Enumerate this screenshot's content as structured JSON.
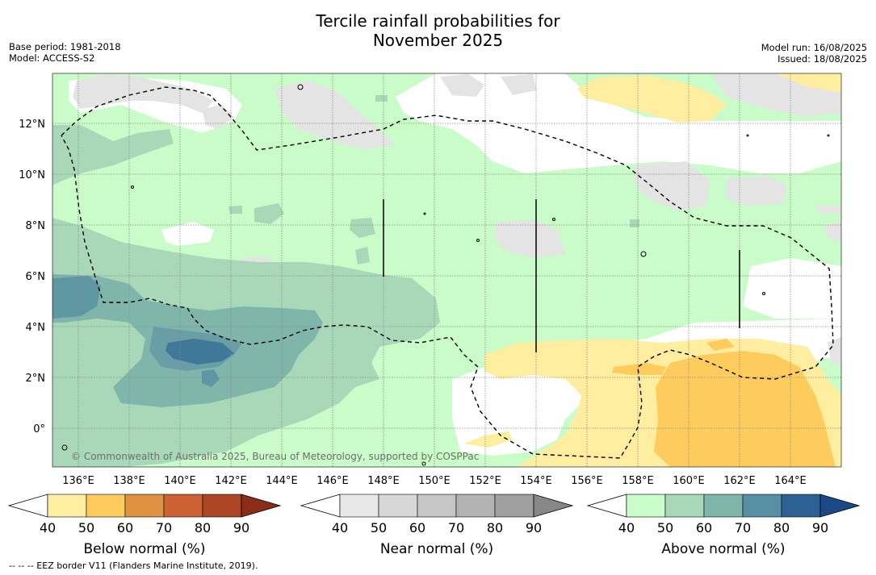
{
  "title_line1": "Tercile rainfall probabilities for",
  "title_line2": "November 2025",
  "meta_left": {
    "base_period": "Base period: 1981-2018",
    "model": "Model: ACCESS-S2"
  },
  "meta_right": {
    "model_run": "Model run: 16/08/2025",
    "issued": "Issued: 18/08/2025"
  },
  "copyright": "© Commonwealth of Australia 2025, Bureau of Meteorology, supported by COSPPac",
  "footnote": "--  --  -- EEZ border V11 (Flanders Marine Institute, 2019).",
  "x_ticks": [
    "136°E",
    "138°E",
    "140°E",
    "142°E",
    "144°E",
    "146°E",
    "148°E",
    "150°E",
    "152°E",
    "154°E",
    "156°E",
    "158°E",
    "160°E",
    "162°E",
    "164°E"
  ],
  "y_ticks": [
    "12°N",
    "10°N",
    "8°N",
    "6°N",
    "4°N",
    "2°N",
    "0°"
  ],
  "colorbars": [
    {
      "label": "Below normal (%)",
      "ticks": [
        "40",
        "50",
        "60",
        "70",
        "80",
        "90"
      ],
      "colors": [
        "#ffffff",
        "#ffeda0",
        "#fecc5c",
        "#e09242",
        "#cc6233",
        "#ab4523",
        "#8c2d19"
      ]
    },
    {
      "label": "Near normal (%)",
      "ticks": [
        "40",
        "50",
        "60",
        "70",
        "80",
        "90"
      ],
      "colors": [
        "#ffffff",
        "#e8e8e8",
        "#d7d7d7",
        "#c6c6c6",
        "#b3b3b3",
        "#a0a0a0",
        "#878787"
      ]
    },
    {
      "label": "Above normal (%)",
      "ticks": [
        "40",
        "50",
        "60",
        "70",
        "80",
        "90"
      ],
      "colors": [
        "#ffffff",
        "#c9fcc8",
        "#a8d8b8",
        "#80b5ac",
        "#5890a3",
        "#2d6193",
        "#1a4a85"
      ]
    }
  ]
}
